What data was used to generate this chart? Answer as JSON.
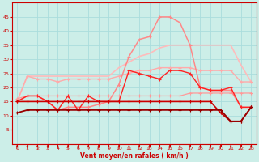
{
  "background_color": "#cceee8",
  "grid_color": "#aadddd",
  "xlabel": "Vent moyen/en rafales ( km/h )",
  "xlabel_color": "#cc0000",
  "tick_color": "#cc0000",
  "xlim": [
    -0.5,
    23.5
  ],
  "ylim": [
    0,
    50
  ],
  "yticks": [
    5,
    10,
    15,
    20,
    25,
    30,
    35,
    40,
    45
  ],
  "xticks": [
    0,
    1,
    2,
    3,
    4,
    5,
    6,
    7,
    8,
    9,
    10,
    11,
    12,
    13,
    14,
    15,
    16,
    17,
    18,
    19,
    20,
    21,
    22,
    23
  ],
  "lines": [
    {
      "x": [
        0,
        1,
        2,
        3,
        4,
        5,
        6,
        7,
        8,
        9,
        10,
        11,
        12,
        13,
        14,
        15,
        16,
        17,
        18,
        19,
        20,
        21,
        22,
        23
      ],
      "y": [
        15,
        24,
        24,
        24,
        24,
        24,
        24,
        24,
        24,
        24,
        27,
        29,
        31,
        32,
        34,
        35,
        35,
        35,
        35,
        35,
        35,
        35,
        28,
        22
      ],
      "color": "#ffbbbb",
      "lw": 1.2,
      "marker": null
    },
    {
      "x": [
        0,
        1,
        2,
        3,
        4,
        5,
        6,
        7,
        8,
        9,
        10,
        11,
        12,
        13,
        14,
        15,
        16,
        17,
        18,
        19,
        20,
        21,
        22,
        23
      ],
      "y": [
        15,
        24,
        23,
        23,
        22,
        23,
        23,
        23,
        23,
        23,
        24,
        25,
        26,
        26,
        27,
        27,
        27,
        27,
        26,
        26,
        26,
        26,
        22,
        22
      ],
      "color": "#ffaaaa",
      "lw": 1.0,
      "marker": "+",
      "markersize": 3
    },
    {
      "x": [
        0,
        1,
        2,
        3,
        4,
        5,
        6,
        7,
        8,
        9,
        10,
        11,
        12,
        13,
        14,
        15,
        16,
        17,
        18,
        19,
        20,
        21,
        22,
        23
      ],
      "y": [
        16,
        17,
        17,
        17,
        17,
        17,
        17,
        17,
        17,
        17,
        17,
        17,
        17,
        17,
        17,
        17,
        17,
        18,
        18,
        18,
        18,
        18,
        18,
        18
      ],
      "color": "#ff9999",
      "lw": 0.9,
      "marker": "+",
      "markersize": 3
    },
    {
      "x": [
        0,
        1,
        2,
        3,
        4,
        5,
        6,
        7,
        8,
        9,
        10,
        11,
        12,
        13,
        14,
        15,
        16,
        17,
        18,
        19,
        20,
        21,
        22,
        23
      ],
      "y": [
        15,
        17,
        17,
        15,
        12,
        13,
        13,
        13,
        14,
        15,
        21,
        31,
        37,
        38,
        45,
        45,
        43,
        35,
        20,
        19,
        19,
        19,
        13,
        13
      ],
      "color": "#ff8888",
      "lw": 1.1,
      "marker": "+",
      "markersize": 3
    },
    {
      "x": [
        0,
        1,
        2,
        3,
        4,
        5,
        6,
        7,
        8,
        9,
        10,
        11,
        12,
        13,
        14,
        15,
        16,
        17,
        18,
        19,
        20,
        21,
        22,
        23
      ],
      "y": [
        15,
        17,
        17,
        15,
        12,
        17,
        12,
        17,
        15,
        15,
        15,
        26,
        25,
        24,
        23,
        26,
        26,
        25,
        20,
        19,
        19,
        20,
        13,
        13
      ],
      "color": "#ff2222",
      "lw": 1.0,
      "marker": "+",
      "markersize": 3
    },
    {
      "x": [
        0,
        1,
        2,
        3,
        4,
        5,
        6,
        7,
        8,
        9,
        10,
        11,
        12,
        13,
        14,
        15,
        16,
        17,
        18,
        19,
        20,
        21,
        22,
        23
      ],
      "y": [
        15,
        15,
        15,
        15,
        15,
        15,
        15,
        15,
        15,
        15,
        15,
        15,
        15,
        15,
        15,
        15,
        15,
        15,
        15,
        15,
        11,
        8,
        8,
        13
      ],
      "color": "#cc0000",
      "lw": 1.2,
      "marker": "+",
      "markersize": 3
    },
    {
      "x": [
        0,
        1,
        2,
        3,
        4,
        5,
        6,
        7,
        8,
        9,
        10,
        11,
        12,
        13,
        14,
        15,
        16,
        17,
        18,
        19,
        20,
        21,
        22,
        23
      ],
      "y": [
        11,
        12,
        12,
        12,
        12,
        12,
        12,
        12,
        12,
        12,
        12,
        12,
        12,
        12,
        12,
        12,
        12,
        12,
        12,
        12,
        12,
        8,
        8,
        13
      ],
      "color": "#990000",
      "lw": 1.3,
      "marker": "+",
      "markersize": 3
    }
  ]
}
